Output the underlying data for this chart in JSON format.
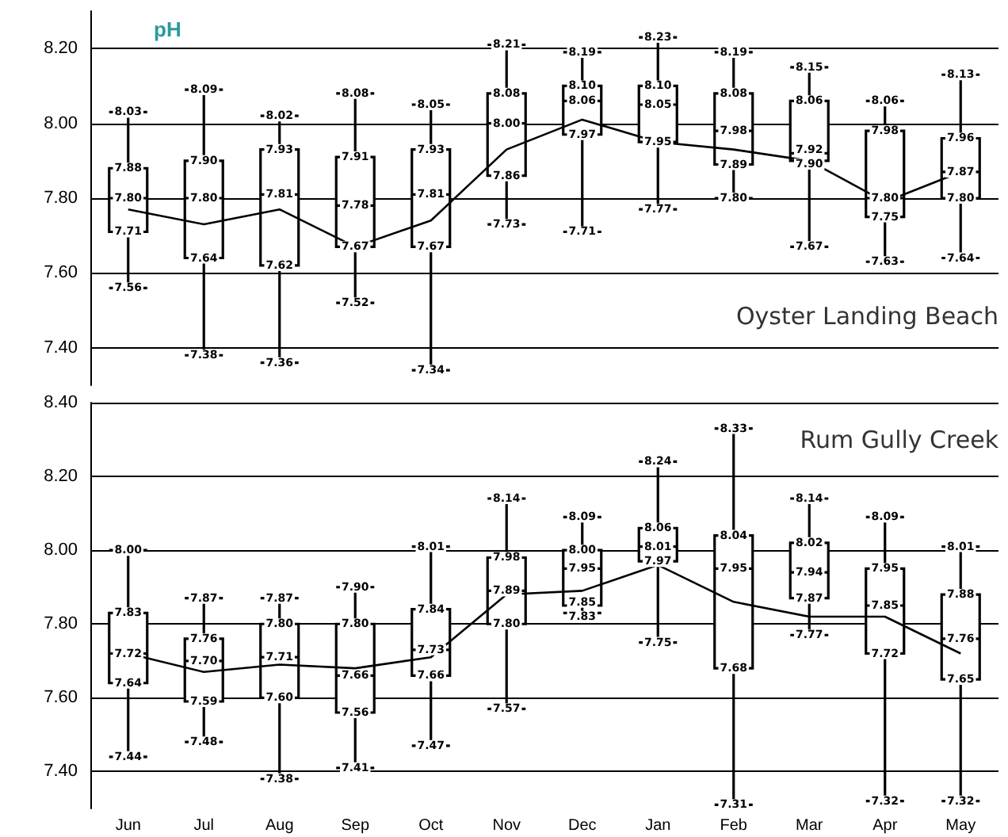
{
  "chart_data": [
    {
      "type": "box",
      "title": "pH",
      "color": "#000000",
      "grid": "y",
      "tick_labels": "y",
      "marker": "none",
      "line_style": "solid",
      "categories": [
        "Jun",
        "Jul",
        "Aug",
        "Sep",
        "Oct",
        "Nov",
        "Dec",
        "Jan",
        "Feb",
        "Mar",
        "Apr",
        "May"
      ],
      "ylim": [
        7.3,
        8.3
      ],
      "yticks": [
        {
          "value": 7.4,
          "label": "7.40"
        },
        {
          "value": 7.6,
          "label": "7.60"
        },
        {
          "value": 7.8,
          "label": "7.80"
        },
        {
          "value": 8.0,
          "label": "8.00"
        },
        {
          "value": 8.2,
          "label": "8.20"
        }
      ],
      "boxes": [
        {
          "low": 7.56,
          "q1": 7.71,
          "median": 7.8,
          "q3": 7.88,
          "high": 8.03
        },
        {
          "low": 7.38,
          "q1": 7.64,
          "median": 7.8,
          "q3": 7.9,
          "high": 8.09
        },
        {
          "low": 7.36,
          "q1": 7.62,
          "median": 7.81,
          "q3": 7.93,
          "high": 8.02
        },
        {
          "low": 7.52,
          "q1": 7.67,
          "median": 7.78,
          "q3": 7.91,
          "high": 8.08
        },
        {
          "low": 7.34,
          "q1": 7.67,
          "median": 7.81,
          "q3": 7.93,
          "high": 8.05
        },
        {
          "low": 7.73,
          "q1": 7.86,
          "median": 8.0,
          "q3": 8.08,
          "high": 8.21
        },
        {
          "low": 7.71,
          "q1": 7.97,
          "median": 8.06,
          "q3": 8.1,
          "high": 8.19
        },
        {
          "low": 7.77,
          "q1": 7.95,
          "median": 8.05,
          "q3": 8.1,
          "high": 8.23
        },
        {
          "low": 7.8,
          "q1": 7.89,
          "median": 7.98,
          "q3": 8.08,
          "high": 8.19
        },
        {
          "low": 7.67,
          "q1": 7.9,
          "median": 7.92,
          "q3": 8.06,
          "high": 8.15
        },
        {
          "low": 7.63,
          "q1": 7.75,
          "median": 7.8,
          "q3": 7.98,
          "high": 8.06
        },
        {
          "low": 7.64,
          "q1": 7.8,
          "median": 7.87,
          "q3": 7.96,
          "high": 8.13
        }
      ],
      "series": [
        {
          "type": "line",
          "color": "#000000",
          "values": [
            7.77,
            7.73,
            7.77,
            7.67,
            7.74,
            7.93,
            8.01,
            7.95,
            7.93,
            7.9,
            7.79,
            7.87
          ]
        }
      ],
      "annotations": [
        "Oyster Landing Beach",
        {
          "text": "7.56",
          "x": "Jun",
          "y": 7.56
        },
        {
          "text": "7.71",
          "x": "Jun",
          "y": 7.71
        },
        {
          "text": "7.80",
          "x": "Jun",
          "y": 7.8
        },
        {
          "text": "7.88",
          "x": "Jun",
          "y": 7.88
        },
        {
          "text": "8.03",
          "x": "Jun",
          "y": 8.03
        },
        {
          "text": "7.38",
          "x": "Jul",
          "y": 7.38
        },
        {
          "text": "7.64",
          "x": "Jul",
          "y": 7.64
        },
        {
          "text": "7.80",
          "x": "Jul",
          "y": 7.8
        },
        {
          "text": "7.90",
          "x": "Jul",
          "y": 7.9
        },
        {
          "text": "8.09",
          "x": "Jul",
          "y": 8.09
        },
        {
          "text": "7.36",
          "x": "Aug",
          "y": 7.36
        },
        {
          "text": "7.62",
          "x": "Aug",
          "y": 7.62
        },
        {
          "text": "7.81",
          "x": "Aug",
          "y": 7.81
        },
        {
          "text": "7.93",
          "x": "Aug",
          "y": 7.93
        },
        {
          "text": "8.02",
          "x": "Aug",
          "y": 8.02
        },
        {
          "text": "7.52",
          "x": "Sep",
          "y": 7.52
        },
        {
          "text": "7.67",
          "x": "Sep",
          "y": 7.67
        },
        {
          "text": "7.78",
          "x": "Sep",
          "y": 7.78
        },
        {
          "text": "7.91",
          "x": "Sep",
          "y": 7.91
        },
        {
          "text": "8.08",
          "x": "Sep",
          "y": 8.08
        },
        {
          "text": "7.34",
          "x": "Oct",
          "y": 7.34
        },
        {
          "text": "7.67",
          "x": "Oct",
          "y": 7.67
        },
        {
          "text": "7.81",
          "x": "Oct",
          "y": 7.81
        },
        {
          "text": "7.93",
          "x": "Oct",
          "y": 7.93
        },
        {
          "text": "8.05",
          "x": "Oct",
          "y": 8.05
        },
        {
          "text": "7.73",
          "x": "Nov",
          "y": 7.73
        },
        {
          "text": "7.86",
          "x": "Nov",
          "y": 7.86
        },
        {
          "text": "8.00",
          "x": "Nov",
          "y": 8.0
        },
        {
          "text": "8.08",
          "x": "Nov",
          "y": 8.08
        },
        {
          "text": "8.21",
          "x": "Nov",
          "y": 8.21
        },
        {
          "text": "7.71",
          "x": "Dec",
          "y": 7.71
        },
        {
          "text": "7.97",
          "x": "Dec",
          "y": 7.97
        },
        {
          "text": "8.06",
          "x": "Dec",
          "y": 8.06
        },
        {
          "text": "8.10",
          "x": "Dec",
          "y": 8.1
        },
        {
          "text": "8.19",
          "x": "Dec",
          "y": 8.19
        },
        {
          "text": "7.77",
          "x": "Jan",
          "y": 7.77
        },
        {
          "text": "7.95",
          "x": "Jan",
          "y": 7.95
        },
        {
          "text": "8.05",
          "x": "Jan",
          "y": 8.05
        },
        {
          "text": "8.10",
          "x": "Jan",
          "y": 8.1
        },
        {
          "text": "8.23",
          "x": "Jan",
          "y": 8.23
        },
        {
          "text": "7.80",
          "x": "Feb",
          "y": 7.8
        },
        {
          "text": "7.89",
          "x": "Feb",
          "y": 7.89
        },
        {
          "text": "7.98",
          "x": "Feb",
          "y": 7.98
        },
        {
          "text": "8.08",
          "x": "Feb",
          "y": 8.08
        },
        {
          "text": "8.19",
          "x": "Feb",
          "y": 8.19
        },
        {
          "text": "7.67",
          "x": "Mar",
          "y": 7.67
        },
        {
          "text": "7.90",
          "x": "Mar",
          "y": 7.9
        },
        {
          "text": "7.92",
          "x": "Mar",
          "y": 7.92
        },
        {
          "text": "8.06",
          "x": "Mar",
          "y": 8.06
        },
        {
          "text": "8.15",
          "x": "Mar",
          "y": 8.15
        },
        {
          "text": "7.63",
          "x": "Apr",
          "y": 7.63
        },
        {
          "text": "7.75",
          "x": "Apr",
          "y": 7.75
        },
        {
          "text": "7.80",
          "x": "Apr",
          "y": 7.8
        },
        {
          "text": "7.98",
          "x": "Apr",
          "y": 7.98
        },
        {
          "text": "8.06",
          "x": "Apr",
          "y": 8.06
        },
        {
          "text": "7.64",
          "x": "May",
          "y": 7.64
        },
        {
          "text": "7.80",
          "x": "May",
          "y": 7.8
        },
        {
          "text": "7.87",
          "x": "May",
          "y": 7.87
        },
        {
          "text": "7.96",
          "x": "May",
          "y": 7.96
        },
        {
          "text": "8.13",
          "x": "May",
          "y": 8.13
        }
      ]
    },
    {
      "type": "box",
      "color": "#000000",
      "grid": "y",
      "marker": "none",
      "line_style": "solid",
      "categories": [
        "Jun",
        "Jul",
        "Aug",
        "Sep",
        "Oct",
        "Nov",
        "Dec",
        "Jan",
        "Feb",
        "Mar",
        "Apr",
        "May"
      ],
      "ylim": [
        7.3,
        8.4
      ],
      "yticks": [
        {
          "value": 7.4,
          "label": "7.40"
        },
        {
          "value": 7.6,
          "label": "7.60"
        },
        {
          "value": 7.8,
          "label": "7.80"
        },
        {
          "value": 8.0,
          "label": "8.00"
        },
        {
          "value": 8.2,
          "label": "8.20"
        },
        {
          "value": 8.4,
          "label": "8.40"
        }
      ],
      "boxes": [
        {
          "low": 7.44,
          "q1": 7.64,
          "median": 7.72,
          "q3": 7.83,
          "high": 8.0
        },
        {
          "low": 7.48,
          "q1": 7.59,
          "median": 7.7,
          "q3": 7.76,
          "high": 7.87
        },
        {
          "low": 7.38,
          "q1": 7.6,
          "median": 7.71,
          "q3": 7.8,
          "high": 7.87
        },
        {
          "low": 7.41,
          "q1": 7.56,
          "median": 7.66,
          "q3": 7.8,
          "high": 7.9
        },
        {
          "low": 7.47,
          "q1": 7.66,
          "median": 7.73,
          "q3": 7.84,
          "high": 8.01
        },
        {
          "low": 7.57,
          "q1": 7.8,
          "median": 7.89,
          "q3": 7.98,
          "high": 8.14
        },
        {
          "low": 7.83,
          "q1": 7.85,
          "median": 7.95,
          "q3": 8.0,
          "high": 8.09
        },
        {
          "low": 7.75,
          "q1": 7.97,
          "median": 8.01,
          "q3": 8.06,
          "high": 8.24
        },
        {
          "low": 7.31,
          "q1": 7.68,
          "median": 7.95,
          "q3": 8.04,
          "high": 8.33
        },
        {
          "low": 7.77,
          "q1": 7.87,
          "median": 7.94,
          "q3": 8.02,
          "high": 8.14
        },
        {
          "low": 7.32,
          "q1": 7.72,
          "median": 7.85,
          "q3": 7.95,
          "high": 8.09
        },
        {
          "low": 7.32,
          "q1": 7.65,
          "median": 7.76,
          "q3": 7.88,
          "high": 8.01
        }
      ],
      "series": [
        {
          "type": "line",
          "color": "#000000",
          "values": [
            7.72,
            7.67,
            7.69,
            7.68,
            7.71,
            7.88,
            7.89,
            7.96,
            7.86,
            7.82,
            7.82,
            7.72
          ]
        }
      ],
      "annotations": [
        "Rum Gully Creek",
        {
          "text": "7.44",
          "x": "Jun",
          "y": 7.44
        },
        {
          "text": "7.64",
          "x": "Jun",
          "y": 7.64
        },
        {
          "text": "7.72",
          "x": "Jun",
          "y": 7.72
        },
        {
          "text": "7.83",
          "x": "Jun",
          "y": 7.83
        },
        {
          "text": "8.00",
          "x": "Jun",
          "y": 8.0
        },
        {
          "text": "7.48",
          "x": "Jul",
          "y": 7.48
        },
        {
          "text": "7.59",
          "x": "Jul",
          "y": 7.59
        },
        {
          "text": "7.70",
          "x": "Jul",
          "y": 7.7
        },
        {
          "text": "7.76",
          "x": "Jul",
          "y": 7.76
        },
        {
          "text": "7.87",
          "x": "Jul",
          "y": 7.87
        },
        {
          "text": "7.38",
          "x": "Aug",
          "y": 7.38
        },
        {
          "text": "7.60",
          "x": "Aug",
          "y": 7.6
        },
        {
          "text": "7.71",
          "x": "Aug",
          "y": 7.71
        },
        {
          "text": "7.80",
          "x": "Aug",
          "y": 7.8
        },
        {
          "text": "7.87",
          "x": "Aug",
          "y": 7.87
        },
        {
          "text": "7.41",
          "x": "Sep",
          "y": 7.41
        },
        {
          "text": "7.56",
          "x": "Sep",
          "y": 7.56
        },
        {
          "text": "7.66",
          "x": "Sep",
          "y": 7.66
        },
        {
          "text": "7.80",
          "x": "Sep",
          "y": 7.8
        },
        {
          "text": "7.90",
          "x": "Sep",
          "y": 7.9
        },
        {
          "text": "7.47",
          "x": "Oct",
          "y": 7.47
        },
        {
          "text": "7.66",
          "x": "Oct",
          "y": 7.66
        },
        {
          "text": "7.73",
          "x": "Oct",
          "y": 7.73
        },
        {
          "text": "7.84",
          "x": "Oct",
          "y": 7.84
        },
        {
          "text": "8.01",
          "x": "Oct",
          "y": 8.01
        },
        {
          "text": "7.57",
          "x": "Nov",
          "y": 7.57
        },
        {
          "text": "7.80",
          "x": "Nov",
          "y": 7.8
        },
        {
          "text": "7.89",
          "x": "Nov",
          "y": 7.89
        },
        {
          "text": "7.98",
          "x": "Nov",
          "y": 7.98
        },
        {
          "text": "8.14",
          "x": "Nov",
          "y": 8.14
        },
        {
          "text": "7.83",
          "x": "Dec",
          "y": 7.83
        },
        {
          "text": "7.85",
          "x": "Dec",
          "y": 7.85
        },
        {
          "text": "7.95",
          "x": "Dec",
          "y": 7.95
        },
        {
          "text": "8.00",
          "x": "Dec",
          "y": 8.0
        },
        {
          "text": "8.09",
          "x": "Dec",
          "y": 8.09
        },
        {
          "text": "7.75",
          "x": "Jan",
          "y": 7.75
        },
        {
          "text": "7.97",
          "x": "Jan",
          "y": 7.97
        },
        {
          "text": "8.01",
          "x": "Jan",
          "y": 8.01
        },
        {
          "text": "8.06",
          "x": "Jan",
          "y": 8.06
        },
        {
          "text": "8.24",
          "x": "Jan",
          "y": 8.24
        },
        {
          "text": "7.31",
          "x": "Feb",
          "y": 7.31
        },
        {
          "text": "7.68",
          "x": "Feb",
          "y": 7.68
        },
        {
          "text": "7.95",
          "x": "Feb",
          "y": 7.95
        },
        {
          "text": "8.04",
          "x": "Feb",
          "y": 8.04
        },
        {
          "text": "8.33",
          "x": "Feb",
          "y": 8.33
        },
        {
          "text": "7.77",
          "x": "Mar",
          "y": 7.77
        },
        {
          "text": "7.87",
          "x": "Mar",
          "y": 7.87
        },
        {
          "text": "7.94",
          "x": "Mar",
          "y": 7.94
        },
        {
          "text": "8.02",
          "x": "Mar",
          "y": 8.02
        },
        {
          "text": "8.14",
          "x": "Mar",
          "y": 8.14
        },
        {
          "text": "7.32",
          "x": "Apr",
          "y": 7.32
        },
        {
          "text": "7.72",
          "x": "Apr",
          "y": 7.72
        },
        {
          "text": "7.85",
          "x": "Apr",
          "y": 7.85
        },
        {
          "text": "7.95",
          "x": "Apr",
          "y": 7.95
        },
        {
          "text": "8.09",
          "x": "Apr",
          "y": 8.09
        },
        {
          "text": "7.32",
          "x": "May",
          "y": 7.32
        },
        {
          "text": "7.65",
          "x": "May",
          "y": 7.65
        },
        {
          "text": "7.76",
          "x": "May",
          "y": 7.76
        },
        {
          "text": "7.88",
          "x": "May",
          "y": 7.88
        },
        {
          "text": "8.01",
          "x": "May",
          "y": 8.01
        }
      ]
    }
  ]
}
